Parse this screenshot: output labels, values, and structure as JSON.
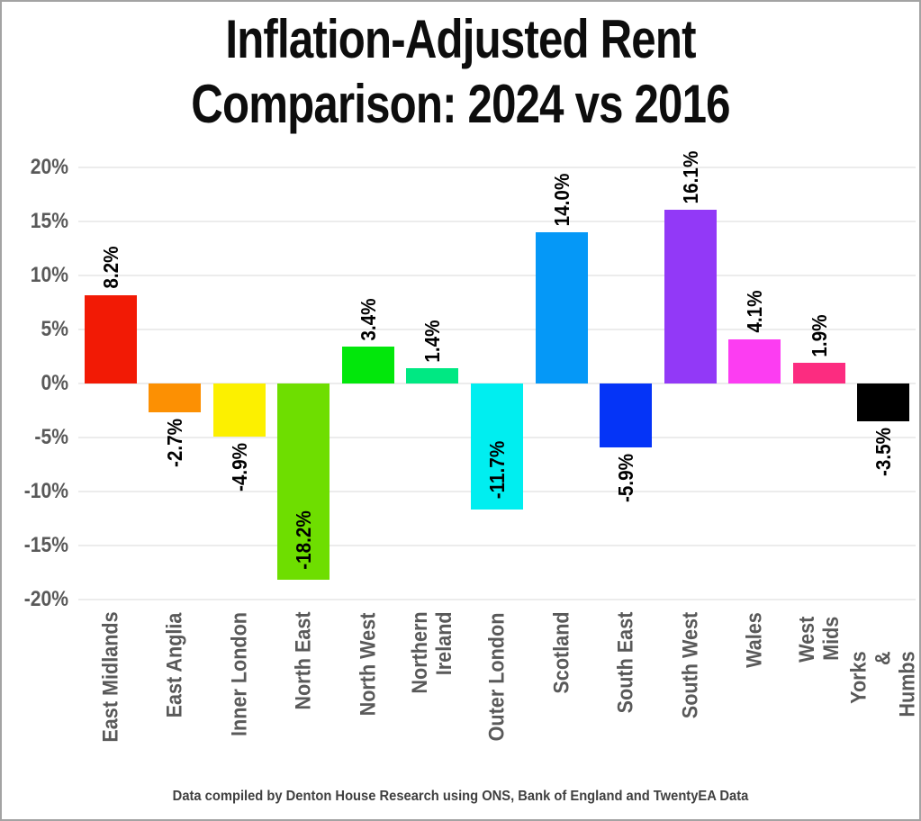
{
  "title": {
    "line1": "Inflation-Adjusted Rent",
    "line2": "Comparison: 2024 vs 2016"
  },
  "footer": {
    "credit": "Data compiled by Denton House Research using ONS, Bank of England and TwentyEA Data"
  },
  "chart_data": {
    "type": "bar",
    "title": "Inflation-Adjusted Rent Comparison: 2024 vs 2016",
    "categories": [
      "East Midlands",
      "East Anglia",
      "Inner London",
      "North East",
      "North West",
      "Northern\nIreland",
      "Outer London",
      "Scotland",
      "South East",
      "South West",
      "Wales",
      "West Mids",
      "Yorks & Humbs"
    ],
    "values": [
      8.2,
      -2.7,
      -4.9,
      -18.2,
      3.4,
      1.4,
      -11.7,
      14.0,
      -5.9,
      16.1,
      4.1,
      1.9,
      -3.5
    ],
    "data_labels": [
      "8.2%",
      "-2.7%",
      "-4.9%",
      "-18.2%",
      "3.4%",
      "1.4%",
      "-11.7%",
      "14.0%",
      "-5.9%",
      "16.1%",
      "4.1%",
      "1.9%",
      "-3.5%"
    ],
    "label_placement": [
      "above",
      "below",
      "below",
      "inside",
      "above",
      "above",
      "inside",
      "above",
      "below",
      "above",
      "above",
      "above",
      "below"
    ],
    "bar_colors": [
      "#f21a05",
      "#fc9003",
      "#fcf000",
      "#6ede00",
      "#02e70b",
      "#00e883",
      "#00eef0",
      "#0598f7",
      "#0534f7",
      "#9239f7",
      "#fc3df2",
      "#fc2c80",
      "#000000"
    ],
    "xlabel": "",
    "ylabel": "",
    "ylim": [
      -20,
      20
    ],
    "ytick_step": 5,
    "yticks": [
      "20%",
      "15%",
      "10%",
      "5%",
      "0%",
      "-5%",
      "-10%",
      "-15%",
      "-20%"
    ],
    "grid": true,
    "legend": "none",
    "gridline_color": "#ececec",
    "axis_label_color": "#595959",
    "data_label_color": "#000000"
  }
}
